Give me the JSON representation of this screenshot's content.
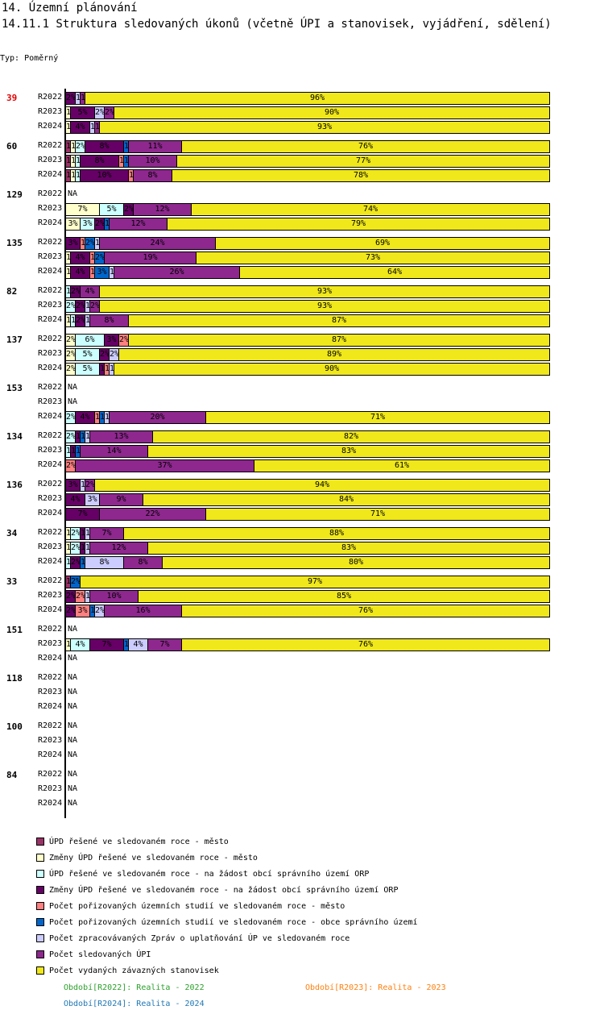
{
  "header": {
    "title": "14. Územní plánování",
    "subtitle": "14.11.1 Struktura sledovaných úkonů (včetně ÚPI a stanovisek, vyjádření, sdělení)",
    "type": "Typ: Poměrný"
  },
  "chart_data": {
    "type": "bar",
    "orientation": "horizontal-stacked-percent",
    "series": [
      {
        "name": "ÚPD řešené ve sledovaném roce - město",
        "color": "#993366"
      },
      {
        "name": "Změny ÚPD řešené ve sledovaném roce - město",
        "color": "#ffffcc"
      },
      {
        "name": "ÚPD řešené ve sledovaném roce - na žádost obcí správního území ORP",
        "color": "#ccffff"
      },
      {
        "name": "Změny ÚPD řešené ve sledovaném roce - na žádost obcí správního území ORP",
        "color": "#660066"
      },
      {
        "name": "Počet pořizovaných územních studií ve sledovaném roce - město",
        "color": "#ff8080"
      },
      {
        "name": "Počet pořizovaných územních studií ve sledovaném roce - obce správního území",
        "color": "#0066cc"
      },
      {
        "name": "Počet zpracovávaných Zpráv o uplatňování ÚP ve sledovaném roce",
        "color": "#ccccff"
      },
      {
        "name": "Počet sledovaných ÚPI",
        "color": "#8e288e"
      },
      {
        "name": "Počet vydaných závazných stanovisek",
        "color": "#f0e81a"
      }
    ],
    "groups": [
      {
        "label": "39",
        "highlight": true,
        "rows": [
          {
            "period": "R2022",
            "values": [
              0,
              0,
              0,
              2,
              0,
              0,
              1,
              1,
              96
            ]
          },
          {
            "period": "R2023",
            "values": [
              0,
              1,
              0,
              5,
              0,
              0,
              2,
              2,
              90
            ]
          },
          {
            "period": "R2024",
            "values": [
              0,
              1,
              0,
              4,
              0,
              0,
              1,
              1,
              93
            ]
          }
        ]
      },
      {
        "label": "60",
        "rows": [
          {
            "period": "R2022",
            "values": [
              1,
              1,
              2,
              8,
              0,
              1,
              0,
              11,
              76
            ]
          },
          {
            "period": "R2023",
            "values": [
              1,
              1,
              1,
              8,
              1,
              1,
              0,
              10,
              77
            ]
          },
          {
            "period": "R2024",
            "values": [
              1,
              1,
              1,
              10,
              1,
              0,
              0,
              8,
              78
            ]
          }
        ]
      },
      {
        "label": "129",
        "rows": [
          {
            "period": "R2022",
            "values": null
          },
          {
            "period": "R2023",
            "values": [
              0,
              7,
              5,
              2,
              0,
              0,
              0,
              12,
              74
            ]
          },
          {
            "period": "R2024",
            "values": [
              0,
              3,
              3,
              2,
              0,
              1,
              0,
              12,
              79
            ]
          }
        ]
      },
      {
        "label": "135",
        "rows": [
          {
            "period": "R2022",
            "values": [
              0,
              0,
              0,
              3,
              1,
              2,
              1,
              24,
              69
            ]
          },
          {
            "period": "R2023",
            "values": [
              0,
              1,
              0,
              4,
              1,
              2,
              0,
              19,
              73
            ]
          },
          {
            "period": "R2024",
            "values": [
              0,
              1,
              0,
              4,
              1,
              3,
              1,
              26,
              64
            ]
          }
        ]
      },
      {
        "label": "82",
        "rows": [
          {
            "period": "R2022",
            "values": [
              0,
              0,
              1,
              2,
              0,
              0,
              0,
              4,
              93
            ]
          },
          {
            "period": "R2023",
            "values": [
              0,
              0,
              2,
              2,
              0,
              0,
              1,
              2,
              93
            ]
          },
          {
            "period": "R2024",
            "values": [
              0,
              1,
              1,
              2,
              0,
              0,
              1,
              8,
              87
            ]
          }
        ]
      },
      {
        "label": "137",
        "rows": [
          {
            "period": "R2022",
            "values": [
              0,
              2,
              6,
              3,
              2,
              0,
              0,
              0,
              87
            ]
          },
          {
            "period": "R2023",
            "values": [
              0,
              2,
              5,
              2,
              0,
              0,
              2,
              0,
              89
            ]
          },
          {
            "period": "R2024",
            "values": [
              0,
              2,
              5,
              1,
              1,
              0,
              1,
              0,
              90
            ]
          }
        ]
      },
      {
        "label": "153",
        "rows": [
          {
            "period": "R2022",
            "values": null
          },
          {
            "period": "R2023",
            "values": null
          },
          {
            "period": "R2024",
            "values": [
              0,
              0,
              2,
              4,
              1,
              1,
              1,
              20,
              71
            ]
          }
        ]
      },
      {
        "label": "134",
        "rows": [
          {
            "period": "R2022",
            "values": [
              0,
              0,
              2,
              1,
              0,
              1,
              1,
              13,
              82
            ]
          },
          {
            "period": "R2023",
            "values": [
              0,
              0,
              1,
              1,
              0,
              1,
              0,
              14,
              83
            ]
          },
          {
            "period": "R2024",
            "values": [
              0,
              0,
              0,
              0,
              2,
              0,
              0,
              37,
              61
            ]
          }
        ]
      },
      {
        "label": "136",
        "rows": [
          {
            "period": "R2022",
            "values": [
              0,
              0,
              0,
              3,
              0,
              0,
              1,
              2,
              94
            ]
          },
          {
            "period": "R2023",
            "values": [
              0,
              0,
              0,
              4,
              0,
              0,
              3,
              9,
              84
            ]
          },
          {
            "period": "R2024",
            "values": [
              0,
              0,
              0,
              7,
              0,
              0,
              0,
              22,
              71
            ]
          }
        ]
      },
      {
        "label": "34",
        "rows": [
          {
            "period": "R2022",
            "values": [
              0,
              1,
              2,
              1,
              0,
              0,
              1,
              7,
              88
            ]
          },
          {
            "period": "R2023",
            "values": [
              0,
              1,
              2,
              1,
              0,
              0,
              1,
              12,
              83
            ]
          },
          {
            "period": "R2024",
            "values": [
              0,
              0,
              1,
              2,
              0,
              1,
              8,
              8,
              80
            ]
          }
        ]
      },
      {
        "label": "33",
        "rows": [
          {
            "period": "R2022",
            "values": [
              1,
              0,
              0,
              0,
              0,
              2,
              0,
              0,
              97
            ]
          },
          {
            "period": "R2023",
            "values": [
              0,
              0,
              0,
              2,
              2,
              0,
              1,
              10,
              85
            ]
          },
          {
            "period": "R2024",
            "values": [
              0,
              0,
              0,
              2,
              3,
              1,
              2,
              16,
              76
            ]
          }
        ]
      },
      {
        "label": "151",
        "rows": [
          {
            "period": "R2022",
            "values": null
          },
          {
            "period": "R2023",
            "values": [
              0,
              1,
              4,
              7,
              0,
              1,
              4,
              7,
              76
            ]
          },
          {
            "period": "R2024",
            "values": null
          }
        ]
      },
      {
        "label": "118",
        "rows": [
          {
            "period": "R2022",
            "values": null
          },
          {
            "period": "R2023",
            "values": null
          },
          {
            "period": "R2024",
            "values": null
          }
        ]
      },
      {
        "label": "100",
        "rows": [
          {
            "period": "R2022",
            "values": null
          },
          {
            "period": "R2023",
            "values": null
          },
          {
            "period": "R2024",
            "values": null
          }
        ]
      },
      {
        "label": "84",
        "rows": [
          {
            "period": "R2022",
            "values": null
          },
          {
            "period": "R2023",
            "values": null
          },
          {
            "period": "R2024",
            "values": null
          }
        ]
      }
    ],
    "na_label": "NA",
    "xlim": [
      0,
      100
    ],
    "periods": [
      {
        "text": "Období[R2022]: Realita - 2022",
        "color": "#2ca02c"
      },
      {
        "text": "Období[R2023]: Realita - 2023",
        "color": "#ff7f0e"
      },
      {
        "text": "Období[R2024]: Realita - 2024",
        "color": "#1f77b4"
      }
    ]
  }
}
